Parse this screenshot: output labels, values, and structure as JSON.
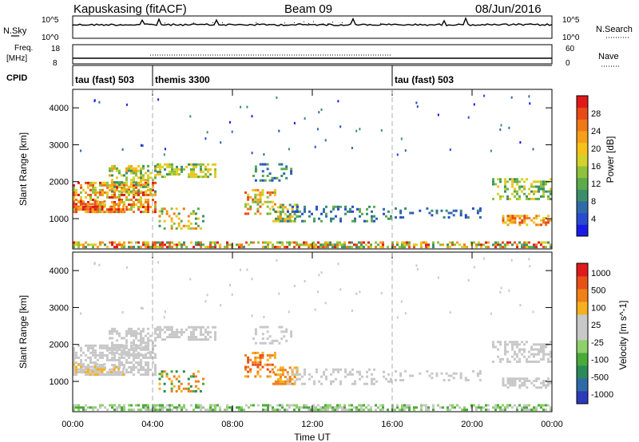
{
  "header": {
    "station": "Kapuskasing (fitACF)",
    "beam": "Beam 09",
    "date": "08/Jun/2016"
  },
  "nsky_panel": {
    "left_label": "N.Sky",
    "left_tick_top": "10^5",
    "left_tick_bottom": "10^0",
    "right_tick_top": "10^5",
    "right_tick_bottom": "10^0",
    "right_label": "N.Search"
  },
  "freq_panel": {
    "left_label_1": "Freq.",
    "left_label_2": "[MHz]",
    "left_tick_top": "18",
    "left_tick_bottom": "8",
    "right_tick_top": "60",
    "right_tick_bottom": "0",
    "right_label": "Nave"
  },
  "cpid_panel": {
    "label": "CPID",
    "modes": [
      {
        "name": "tau (fast) 503",
        "start_hour": 0
      },
      {
        "name": "themis 3300",
        "start_hour": 4
      },
      {
        "name": "tau (fast) 503",
        "start_hour": 16
      }
    ]
  },
  "chart_data": [
    {
      "type": "heatmap",
      "name": "power",
      "ylabel": "Slant Range [km]",
      "xlabel": "Time UT",
      "xlim": [
        0,
        24
      ],
      "ylim": [
        180,
        4500
      ],
      "x_ticks": [
        "00:00",
        "04:00",
        "08:00",
        "12:00",
        "16:00",
        "20:00",
        "00:00"
      ],
      "y_ticks": [
        1000,
        2000,
        3000,
        4000
      ],
      "colorbar": {
        "label": "Power [dB]",
        "ticks": [
          "4",
          "8",
          "12",
          "16",
          "20",
          "24",
          "28"
        ],
        "colors": [
          "#1a1ae6",
          "#2a4ad0",
          "#2f6aa8",
          "#3a8f6a",
          "#5cab4a",
          "#8fc23a",
          "#d4d22a",
          "#f5c21a",
          "#f5a018",
          "#f07818",
          "#e84a18",
          "#e01a1a"
        ]
      }
    },
    {
      "type": "heatmap",
      "name": "velocity",
      "ylabel": "Slant Range [km]",
      "xlabel": "Time UT",
      "xlim": [
        0,
        24
      ],
      "ylim": [
        180,
        4500
      ],
      "x_ticks": [
        "00:00",
        "04:00",
        "08:00",
        "12:00",
        "16:00",
        "20:00",
        "00:00"
      ],
      "y_ticks": [
        1000,
        2000,
        3000,
        4000
      ],
      "colorbar": {
        "label": "Velocity [m s^-1]",
        "ticks": [
          "1000",
          "500",
          "100",
          "25",
          "-25",
          "-100",
          "-500",
          "-1000"
        ],
        "colors": [
          "#2a3ab8",
          "#2f6aa8",
          "#2a8a5a",
          "#4aaa3a",
          "#8fd06a",
          "#c8c8c8",
          "#c8c8c8",
          "#f5b020",
          "#f08018",
          "#e85018",
          "#e01a1a"
        ]
      }
    }
  ]
}
